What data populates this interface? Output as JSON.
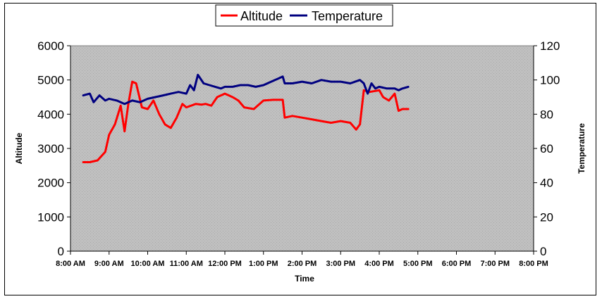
{
  "chart_data": {
    "type": "line",
    "xlabel": "Time",
    "y_left_label": "Altitude",
    "y_right_label": "Temperature",
    "x_ticks": [
      "8:00 AM",
      "9:00 AM",
      "10:00 AM",
      "11:00 AM",
      "12:00 PM",
      "1:00 PM",
      "2:00 PM",
      "3:00 PM",
      "4:00 PM",
      "5:00 PM",
      "6:00 PM",
      "7:00 PM",
      "8:00 PM"
    ],
    "x_range_hours": [
      8,
      20
    ],
    "y_left_range": [
      0,
      6000
    ],
    "y_left_ticks": [
      "0",
      "1000",
      "2000",
      "3000",
      "4000",
      "5000",
      "6000"
    ],
    "y_right_range": [
      0,
      120
    ],
    "y_right_ticks": [
      "0",
      "20",
      "40",
      "60",
      "80",
      "100",
      "120"
    ],
    "legend_position": "top-center",
    "plot_background": "#c0c0c0",
    "series": [
      {
        "name": "Altitude",
        "axis": "left",
        "color": "#ff0000",
        "x": [
          8.33,
          8.5,
          8.7,
          8.9,
          9.0,
          9.15,
          9.3,
          9.4,
          9.5,
          9.6,
          9.7,
          9.85,
          10.0,
          10.15,
          10.3,
          10.45,
          10.6,
          10.75,
          10.9,
          11.0,
          11.25,
          11.4,
          11.5,
          11.65,
          11.8,
          12.0,
          12.2,
          12.35,
          12.5,
          12.75,
          13.0,
          13.25,
          13.5,
          13.55,
          13.75,
          14.0,
          14.25,
          14.5,
          14.75,
          15.0,
          15.25,
          15.4,
          15.5,
          15.6,
          15.75,
          16.0,
          16.1,
          16.25,
          16.4,
          16.5,
          16.6,
          16.75
        ],
        "values": [
          2600,
          2600,
          2650,
          2900,
          3400,
          3700,
          4250,
          3500,
          4300,
          4950,
          4900,
          4200,
          4150,
          4400,
          4000,
          3700,
          3600,
          3900,
          4300,
          4200,
          4300,
          4280,
          4300,
          4250,
          4500,
          4600,
          4500,
          4400,
          4200,
          4150,
          4400,
          4420,
          4420,
          3900,
          3950,
          3900,
          3850,
          3800,
          3750,
          3800,
          3750,
          3550,
          3700,
          4700,
          4650,
          4700,
          4500,
          4400,
          4600,
          4100,
          4150,
          4150
        ]
      },
      {
        "name": "Temperature",
        "axis": "right",
        "color": "#000080",
        "x": [
          8.33,
          8.5,
          8.6,
          8.75,
          8.9,
          9.0,
          9.2,
          9.4,
          9.6,
          9.8,
          10.0,
          10.2,
          10.4,
          10.6,
          10.8,
          11.0,
          11.1,
          11.2,
          11.3,
          11.45,
          11.6,
          11.75,
          11.9,
          12.0,
          12.2,
          12.4,
          12.6,
          12.8,
          13.0,
          13.2,
          13.4,
          13.5,
          13.55,
          13.75,
          14.0,
          14.25,
          14.5,
          14.75,
          15.0,
          15.25,
          15.5,
          15.6,
          15.7,
          15.8,
          15.9,
          16.0,
          16.2,
          16.4,
          16.5,
          16.6,
          16.75
        ],
        "values": [
          91,
          92,
          87,
          91,
          88,
          89,
          88,
          86,
          88,
          87,
          89,
          90,
          91,
          92,
          93,
          92,
          97,
          94,
          103,
          98,
          97,
          96,
          95,
          96,
          96,
          97,
          97,
          96,
          97,
          99,
          101,
          102,
          98,
          98,
          99,
          98,
          100,
          99,
          99,
          98,
          100,
          98,
          92,
          98,
          95,
          96,
          95,
          95,
          94,
          95,
          96
        ]
      }
    ]
  }
}
